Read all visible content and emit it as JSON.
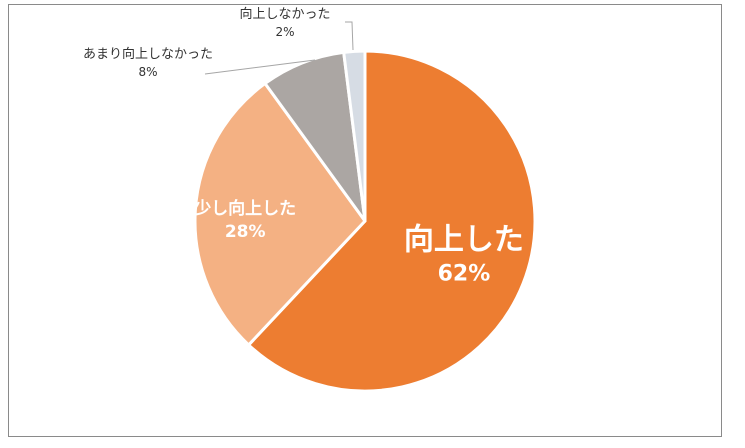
{
  "chart_data": {
    "type": "pie",
    "categories": [
      "向上した",
      "少し向上した",
      "あまり向上しなかった",
      "向上しなかった"
    ],
    "values": [
      62,
      28,
      8,
      2
    ],
    "value_labels": [
      "62%",
      "28%",
      "8%",
      "2%"
    ],
    "colors": [
      "#ED7D31",
      "#F4B183",
      "#ABA6A3",
      "#D6DCE4"
    ],
    "start_angle_deg": 0,
    "direction": "clockwise",
    "legend": "none",
    "title": ""
  }
}
